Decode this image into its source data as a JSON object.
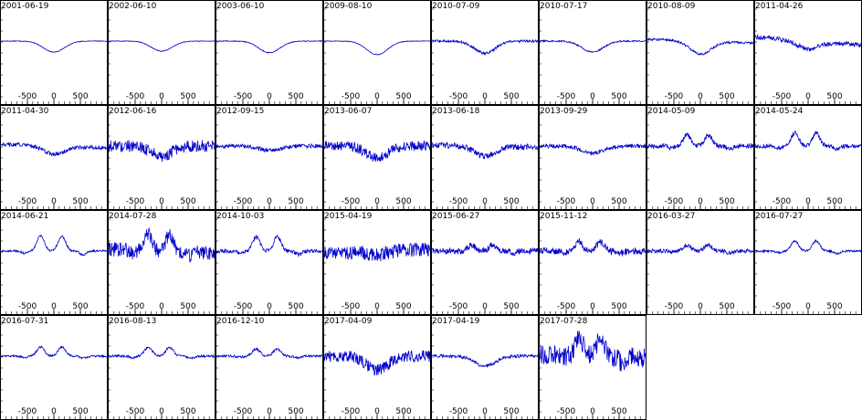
{
  "chart_data": {
    "type": "line",
    "layout": "small-multiples",
    "line_color": "#0000cc",
    "x_ticks": [
      -500,
      0,
      500
    ],
    "xlim": [
      -1000,
      1000
    ],
    "grid": false,
    "panels": [
      {
        "title": "2001-06-19",
        "profile": "single-dip",
        "dip": 0.55,
        "noise": 0.015,
        "slope": 0
      },
      {
        "title": "2002-06-10",
        "profile": "single-dip",
        "dip": 0.5,
        "noise": 0.015,
        "slope": 0
      },
      {
        "title": "2003-06-10",
        "profile": "single-dip",
        "dip": 0.58,
        "noise": 0.02,
        "slope": 0
      },
      {
        "title": "2009-08-10",
        "profile": "single-dip",
        "dip": 0.68,
        "noise": 0.015,
        "slope": 0
      },
      {
        "title": "2010-07-09",
        "profile": "single-dip",
        "dip": 0.6,
        "noise": 0.06,
        "slope": 0
      },
      {
        "title": "2010-07-17",
        "profile": "single-dip",
        "dip": 0.55,
        "noise": 0.04,
        "slope": 0
      },
      {
        "title": "2010-08-09",
        "profile": "single-dip",
        "dip": 0.65,
        "noise": 0.06,
        "slope": -0.1
      },
      {
        "title": "2011-04-26",
        "profile": "single-dip",
        "dip": 0.4,
        "noise": 0.12,
        "slope": -0.2
      },
      {
        "title": "2011-04-30",
        "profile": "single-dip",
        "dip": 0.4,
        "noise": 0.1,
        "slope": -0.1
      },
      {
        "title": "2012-06-16",
        "profile": "single-dip",
        "dip": 0.5,
        "noise": 0.3,
        "slope": 0
      },
      {
        "title": "2012-09-15",
        "profile": "single-dip",
        "dip": 0.2,
        "noise": 0.1,
        "slope": 0
      },
      {
        "title": "2013-06-07",
        "profile": "single-dip",
        "dip": 0.6,
        "noise": 0.25,
        "slope": 0
      },
      {
        "title": "2013-06-18",
        "profile": "single-dip",
        "dip": 0.5,
        "noise": 0.15,
        "slope": -0.05
      },
      {
        "title": "2013-09-29",
        "profile": "single-dip",
        "dip": 0.35,
        "noise": 0.1,
        "slope": 0
      },
      {
        "title": "2014-05-09",
        "profile": "double-peak",
        "dip": 0.55,
        "noise": 0.12,
        "slope": 0
      },
      {
        "title": "2014-05-24",
        "profile": "double-peak",
        "dip": 0.65,
        "noise": 0.1,
        "slope": 0
      },
      {
        "title": "2014-06-21",
        "profile": "double-peak",
        "dip": 0.75,
        "noise": 0.05,
        "slope": 0
      },
      {
        "title": "2014-07-28",
        "profile": "double-peak",
        "dip": 0.8,
        "noise": 0.35,
        "slope": -0.1
      },
      {
        "title": "2014-10-03",
        "profile": "double-peak",
        "dip": 0.7,
        "noise": 0.1,
        "slope": 0
      },
      {
        "title": "2015-04-19",
        "profile": "single-dip",
        "dip": 0.2,
        "noise": 0.35,
        "slope": 0.1
      },
      {
        "title": "2015-06-27",
        "profile": "double-peak",
        "dip": 0.3,
        "noise": 0.15,
        "slope": 0
      },
      {
        "title": "2015-11-12",
        "profile": "double-peak",
        "dip": 0.45,
        "noise": 0.18,
        "slope": 0
      },
      {
        "title": "2016-03-27",
        "profile": "double-peak",
        "dip": 0.3,
        "noise": 0.1,
        "slope": 0
      },
      {
        "title": "2016-07-27",
        "profile": "double-peak",
        "dip": 0.5,
        "noise": 0.05,
        "slope": 0
      },
      {
        "title": "2016-07-31",
        "profile": "double-peak",
        "dip": 0.45,
        "noise": 0.05,
        "slope": 0
      },
      {
        "title": "2016-08-13",
        "profile": "double-peak",
        "dip": 0.45,
        "noise": 0.06,
        "slope": 0
      },
      {
        "title": "2016-12-10",
        "profile": "double-peak",
        "dip": 0.35,
        "noise": 0.06,
        "slope": 0
      },
      {
        "title": "2017-04-09",
        "profile": "single-dip",
        "dip": 0.7,
        "noise": 0.3,
        "slope": 0
      },
      {
        "title": "2017-04-19",
        "profile": "single-dip",
        "dip": 0.5,
        "noise": 0.08,
        "slope": 0
      },
      {
        "title": "2017-07-28",
        "profile": "double-peak",
        "dip": 0.9,
        "noise": 0.5,
        "slope": -0.1
      }
    ]
  }
}
